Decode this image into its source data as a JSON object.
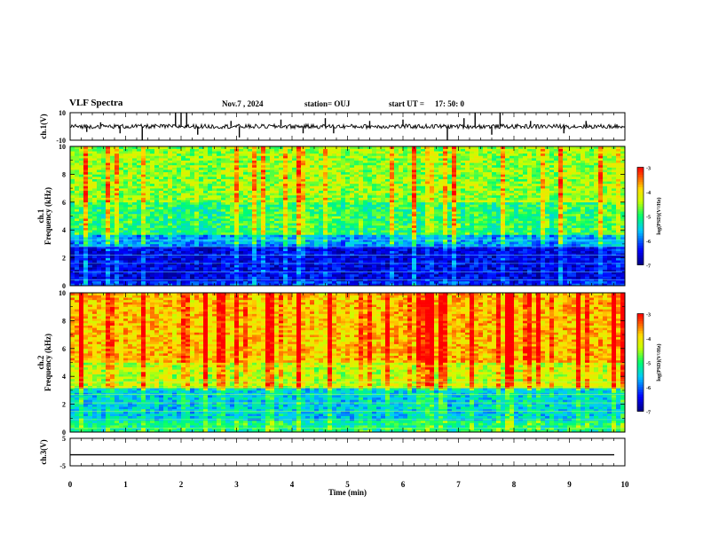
{
  "header": {
    "title": "VLF Spectra",
    "date": "Nov.7  , 2024",
    "station": "station= OUJ",
    "start_label": "start  UT  =",
    "start_value": "17: 50: 0"
  },
  "chart_data": [
    {
      "type": "line",
      "panel": "ch1-waveform",
      "ylabel": "ch.1(V)",
      "ylim": [
        -10,
        10
      ],
      "ytick_labels": [
        "10",
        "-10"
      ],
      "xlim": [
        0,
        10
      ],
      "baseline": 0,
      "spikes": [
        {
          "x": 0.3,
          "y": -4
        },
        {
          "x": 0.55,
          "y": 3
        },
        {
          "x": 0.9,
          "y": -5
        },
        {
          "x": 1.3,
          "y": -10
        },
        {
          "x": 1.9,
          "y": 10
        },
        {
          "x": 2.0,
          "y": 10
        },
        {
          "x": 2.1,
          "y": 10
        },
        {
          "x": 2.3,
          "y": -6
        },
        {
          "x": 2.9,
          "y": 4
        },
        {
          "x": 3.05,
          "y": -8
        },
        {
          "x": 3.8,
          "y": 5
        },
        {
          "x": 4.2,
          "y": -5
        },
        {
          "x": 4.6,
          "y": 6
        },
        {
          "x": 4.75,
          "y": -5
        },
        {
          "x": 5.4,
          "y": 4
        },
        {
          "x": 6.0,
          "y": 5
        },
        {
          "x": 6.8,
          "y": -10
        },
        {
          "x": 7.1,
          "y": 6
        },
        {
          "x": 7.3,
          "y": 10
        },
        {
          "x": 7.6,
          "y": -6
        },
        {
          "x": 7.75,
          "y": 10
        },
        {
          "x": 8.3,
          "y": 4
        },
        {
          "x": 8.9,
          "y": -5
        },
        {
          "x": 9.3,
          "y": 4
        }
      ]
    },
    {
      "type": "heatmap",
      "panel": "ch1-spectrogram",
      "ylabel": "ch.1\nFrequency  (kHz)",
      "ylim": [
        0,
        10
      ],
      "ytick_labels": [
        "0",
        "2",
        "4",
        "6",
        "8",
        "10"
      ],
      "xlim": [
        0,
        10
      ],
      "colorbar": {
        "label": "log(PSD)(V²/Hz)",
        "range": [
          -7,
          -3
        ],
        "tick_labels": [
          "-3",
          "-4",
          "-5",
          "-6",
          "-7"
        ]
      },
      "layers": [
        {
          "freq": [
            0,
            0.4
          ],
          "level": -6.3
        },
        {
          "freq": [
            0.4,
            2.8
          ],
          "level": -6.6
        },
        {
          "freq": [
            2.8,
            3.6
          ],
          "level": -5.9
        },
        {
          "freq": [
            3.6,
            6.0
          ],
          "level": -5.1
        },
        {
          "freq": [
            6.0,
            10
          ],
          "level": -4.7
        }
      ]
    },
    {
      "type": "heatmap",
      "panel": "ch2-spectrogram",
      "ylabel": "ch.2\nFrequency  (kHz)",
      "ylim": [
        0,
        10
      ],
      "ytick_labels": [
        "0",
        "2",
        "4",
        "6",
        "8",
        "10"
      ],
      "xlim": [
        0,
        10
      ],
      "colorbar": {
        "label": "log(PSD)(V²/Hz)",
        "range": [
          -7,
          -3
        ],
        "tick_labels": [
          "-3",
          "-4",
          "-5",
          "-6",
          "-7"
        ]
      },
      "layers": [
        {
          "freq": [
            0,
            0.8
          ],
          "level": -5.2
        },
        {
          "freq": [
            0.8,
            3.2
          ],
          "level": -5.6
        },
        {
          "freq": [
            3.2,
            5.0
          ],
          "level": -4.5
        },
        {
          "freq": [
            5.0,
            10
          ],
          "level": -4.0
        }
      ]
    },
    {
      "type": "line",
      "panel": "ch3-waveform",
      "ylabel": "ch.3(V)",
      "ylim": [
        -5,
        5
      ],
      "ytick_labels": [
        "5",
        "-5"
      ],
      "xlim": [
        0,
        10
      ],
      "baseline": -1,
      "xlabel": "Time  (min)",
      "xtick_labels": [
        "0",
        "1",
        "2",
        "3",
        "4",
        "5",
        "6",
        "7",
        "8",
        "9",
        "10"
      ]
    }
  ],
  "colors": {
    "c0": "#00007f",
    "c1": "#0000ff",
    "c2": "#00bfff",
    "c3": "#00ff7f",
    "c4": "#ffff00",
    "c5": "#ff7f00",
    "c6": "#ff0000",
    "c7": "#ff00ff",
    "c8": "#ffffff"
  }
}
